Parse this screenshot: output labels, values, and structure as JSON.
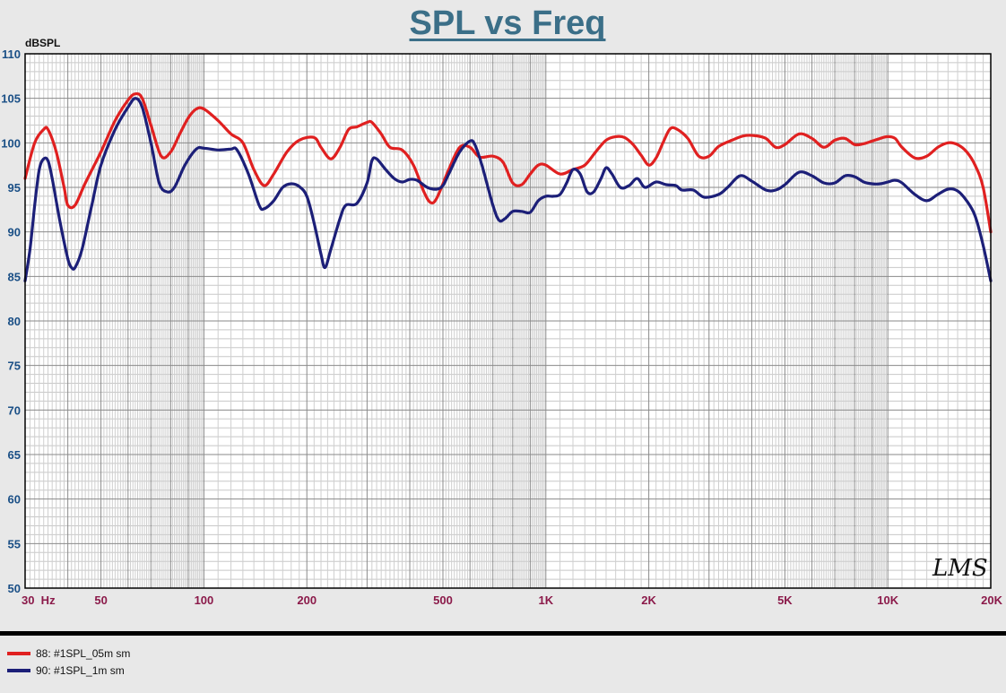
{
  "chart_data": {
    "type": "line",
    "title": "SPL vs Freq",
    "ylabel": "dBSPL",
    "xlabel": "",
    "xscale": "log",
    "xlim": [
      30,
      20000
    ],
    "ylim": [
      50,
      110
    ],
    "grid": true,
    "yticks": [
      50,
      55,
      60,
      65,
      70,
      75,
      80,
      85,
      90,
      95,
      100,
      105,
      110
    ],
    "xticks": [
      {
        "value": 30,
        "label": "30  Hz"
      },
      {
        "value": 50,
        "label": "50"
      },
      {
        "value": 100,
        "label": "100"
      },
      {
        "value": 200,
        "label": "200"
      },
      {
        "value": 500,
        "label": "500"
      },
      {
        "value": 1000,
        "label": "1K"
      },
      {
        "value": 2000,
        "label": "2K"
      },
      {
        "value": 5000,
        "label": "5K"
      },
      {
        "value": 10000,
        "label": "10K"
      },
      {
        "value": 20000,
        "label": "20K"
      }
    ],
    "legend_position": "bottom-left",
    "watermark": "LMS",
    "series": [
      {
        "name": "88: #1SPL_05m sm",
        "color": "#e02020",
        "points": [
          [
            30,
            96
          ],
          [
            32,
            100
          ],
          [
            34,
            101.5
          ],
          [
            35,
            101.5
          ],
          [
            37,
            99
          ],
          [
            39,
            95
          ],
          [
            40,
            93
          ],
          [
            42,
            93
          ],
          [
            45,
            95.5
          ],
          [
            50,
            99
          ],
          [
            55,
            102.5
          ],
          [
            60,
            104.8
          ],
          [
            63,
            105.5
          ],
          [
            66,
            105
          ],
          [
            70,
            102
          ],
          [
            75,
            98.5
          ],
          [
            80,
            99
          ],
          [
            85,
            101
          ],
          [
            90,
            102.8
          ],
          [
            95,
            103.8
          ],
          [
            100,
            103.8
          ],
          [
            110,
            102.5
          ],
          [
            120,
            101
          ],
          [
            130,
            100
          ],
          [
            140,
            97
          ],
          [
            150,
            95.2
          ],
          [
            160,
            96.5
          ],
          [
            175,
            99
          ],
          [
            190,
            100.3
          ],
          [
            210,
            100.6
          ],
          [
            220,
            99.5
          ],
          [
            235,
            98.2
          ],
          [
            250,
            99.5
          ],
          [
            265,
            101.5
          ],
          [
            280,
            101.8
          ],
          [
            300,
            102.3
          ],
          [
            310,
            102.3
          ],
          [
            330,
            101
          ],
          [
            350,
            99.5
          ],
          [
            380,
            99.2
          ],
          [
            410,
            97.5
          ],
          [
            440,
            94.5
          ],
          [
            460,
            93.3
          ],
          [
            480,
            93.8
          ],
          [
            520,
            97
          ],
          [
            560,
            99.5
          ],
          [
            600,
            99.5
          ],
          [
            640,
            98.4
          ],
          [
            700,
            98.5
          ],
          [
            750,
            97.8
          ],
          [
            800,
            95.5
          ],
          [
            850,
            95.3
          ],
          [
            900,
            96.5
          ],
          [
            950,
            97.5
          ],
          [
            1000,
            97.5
          ],
          [
            1100,
            96.5
          ],
          [
            1200,
            97
          ],
          [
            1300,
            97.5
          ],
          [
            1400,
            99
          ],
          [
            1500,
            100.3
          ],
          [
            1600,
            100.7
          ],
          [
            1700,
            100.6
          ],
          [
            1800,
            99.8
          ],
          [
            1900,
            98.6
          ],
          [
            2000,
            97.5
          ],
          [
            2100,
            98.3
          ],
          [
            2200,
            100
          ],
          [
            2300,
            101.5
          ],
          [
            2400,
            101.6
          ],
          [
            2600,
            100.5
          ],
          [
            2800,
            98.5
          ],
          [
            3000,
            98.5
          ],
          [
            3200,
            99.6
          ],
          [
            3500,
            100.3
          ],
          [
            3800,
            100.8
          ],
          [
            4100,
            100.8
          ],
          [
            4400,
            100.5
          ],
          [
            4700,
            99.5
          ],
          [
            5000,
            99.8
          ],
          [
            5500,
            101
          ],
          [
            6000,
            100.5
          ],
          [
            6500,
            99.5
          ],
          [
            7000,
            100.3
          ],
          [
            7500,
            100.5
          ],
          [
            8000,
            99.8
          ],
          [
            8500,
            99.9
          ],
          [
            9000,
            100.2
          ],
          [
            9500,
            100.5
          ],
          [
            10000,
            100.7
          ],
          [
            10500,
            100.5
          ],
          [
            11000,
            99.5
          ],
          [
            12000,
            98.3
          ],
          [
            13000,
            98.5
          ],
          [
            14000,
            99.5
          ],
          [
            15000,
            100
          ],
          [
            16000,
            99.8
          ],
          [
            17000,
            99
          ],
          [
            18000,
            97.5
          ],
          [
            19000,
            95
          ],
          [
            20000,
            90
          ]
        ]
      },
      {
        "name": "90: #1SPL_1m sm",
        "color": "#1c1f78",
        "points": [
          [
            30,
            84.5
          ],
          [
            31,
            88
          ],
          [
            32,
            93
          ],
          [
            33,
            97
          ],
          [
            34,
            98.2
          ],
          [
            35,
            98
          ],
          [
            36,
            96
          ],
          [
            38,
            91
          ],
          [
            40,
            87
          ],
          [
            41,
            86
          ],
          [
            42,
            86
          ],
          [
            44,
            88
          ],
          [
            47,
            93
          ],
          [
            50,
            97.5
          ],
          [
            55,
            101.5
          ],
          [
            60,
            104
          ],
          [
            63,
            105
          ],
          [
            66,
            104
          ],
          [
            70,
            100
          ],
          [
            74,
            95.5
          ],
          [
            78,
            94.5
          ],
          [
            82,
            95
          ],
          [
            88,
            97.5
          ],
          [
            95,
            99.3
          ],
          [
            100,
            99.4
          ],
          [
            110,
            99.2
          ],
          [
            120,
            99.3
          ],
          [
            125,
            99.2
          ],
          [
            135,
            96.5
          ],
          [
            145,
            93
          ],
          [
            150,
            92.6
          ],
          [
            160,
            93.5
          ],
          [
            170,
            95
          ],
          [
            180,
            95.4
          ],
          [
            190,
            95.1
          ],
          [
            200,
            94
          ],
          [
            210,
            91
          ],
          [
            220,
            87.5
          ],
          [
            226,
            86
          ],
          [
            235,
            88
          ],
          [
            250,
            91.5
          ],
          [
            260,
            93
          ],
          [
            280,
            93.2
          ],
          [
            300,
            95.5
          ],
          [
            310,
            98
          ],
          [
            320,
            98.2
          ],
          [
            340,
            97
          ],
          [
            360,
            96
          ],
          [
            380,
            95.6
          ],
          [
            400,
            95.9
          ],
          [
            420,
            95.8
          ],
          [
            450,
            95
          ],
          [
            480,
            94.8
          ],
          [
            500,
            95.2
          ],
          [
            520,
            96.5
          ],
          [
            560,
            99
          ],
          [
            600,
            100.2
          ],
          [
            620,
            99.8
          ],
          [
            650,
            97.5
          ],
          [
            700,
            93
          ],
          [
            730,
            91.3
          ],
          [
            760,
            91.5
          ],
          [
            800,
            92.3
          ],
          [
            850,
            92.3
          ],
          [
            900,
            92.2
          ],
          [
            950,
            93.5
          ],
          [
            1000,
            94
          ],
          [
            1050,
            94
          ],
          [
            1100,
            94.2
          ],
          [
            1150,
            95.5
          ],
          [
            1200,
            97
          ],
          [
            1260,
            96.5
          ],
          [
            1320,
            94.5
          ],
          [
            1380,
            94.5
          ],
          [
            1450,
            96
          ],
          [
            1500,
            97.2
          ],
          [
            1560,
            96.5
          ],
          [
            1650,
            95
          ],
          [
            1750,
            95.2
          ],
          [
            1850,
            96
          ],
          [
            1950,
            95
          ],
          [
            2100,
            95.6
          ],
          [
            2250,
            95.3
          ],
          [
            2400,
            95.2
          ],
          [
            2500,
            94.7
          ],
          [
            2700,
            94.7
          ],
          [
            2900,
            93.9
          ],
          [
            3200,
            94.2
          ],
          [
            3400,
            95
          ],
          [
            3700,
            96.3
          ],
          [
            4000,
            95.7
          ],
          [
            4400,
            94.7
          ],
          [
            4700,
            94.7
          ],
          [
            5000,
            95.3
          ],
          [
            5500,
            96.7
          ],
          [
            6000,
            96.3
          ],
          [
            6500,
            95.5
          ],
          [
            7000,
            95.5
          ],
          [
            7500,
            96.3
          ],
          [
            8000,
            96.2
          ],
          [
            8500,
            95.6
          ],
          [
            9000,
            95.4
          ],
          [
            9500,
            95.4
          ],
          [
            10000,
            95.6
          ],
          [
            10500,
            95.8
          ],
          [
            11000,
            95.5
          ],
          [
            12000,
            94.2
          ],
          [
            13000,
            93.5
          ],
          [
            14000,
            94.2
          ],
          [
            15000,
            94.8
          ],
          [
            16000,
            94.6
          ],
          [
            17000,
            93.5
          ],
          [
            18000,
            91.8
          ],
          [
            19000,
            88.5
          ],
          [
            20000,
            84.5
          ]
        ]
      }
    ]
  }
}
